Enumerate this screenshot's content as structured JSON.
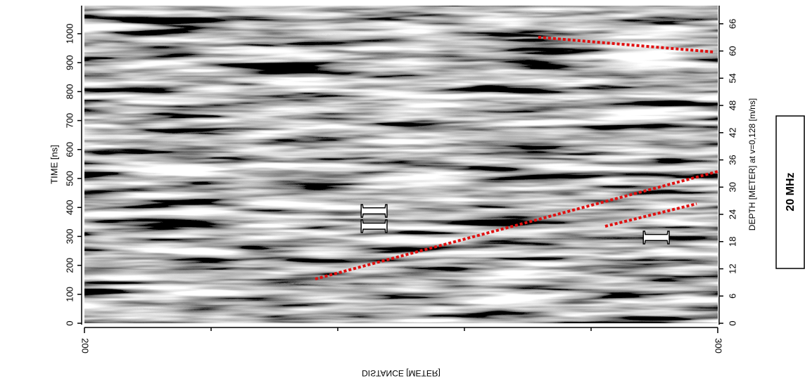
{
  "chart_data": {
    "type": "radargram",
    "xlabel": "DISTANCE [METER]",
    "ylabel": "TIME [ns]",
    "y2label": "DEPTH [METER] at v=0,128 [m/ns]",
    "xlim": [
      200,
      300
    ],
    "xticks": [
      200,
      300
    ],
    "ylim": [
      0,
      1097
    ],
    "yticks": [
      0,
      100,
      200,
      300,
      400,
      500,
      600,
      700,
      800,
      900,
      1000
    ],
    "y2lim": [
      0,
      70
    ],
    "y2ticks": [
      0,
      6,
      12,
      18,
      24,
      30,
      36,
      42,
      48,
      54,
      60,
      66
    ],
    "annotations": [
      "II",
      "I"
    ],
    "frequency_label": "20 MHz"
  }
}
